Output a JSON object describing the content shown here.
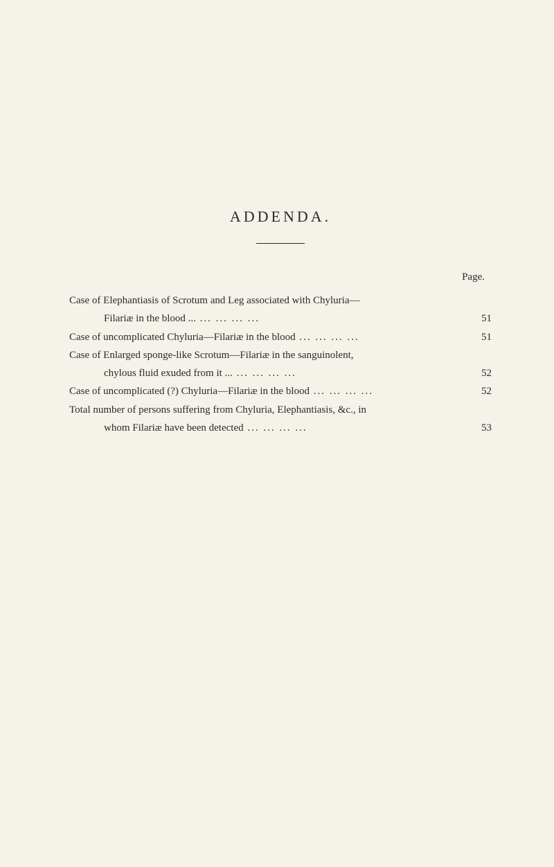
{
  "title": "ADDENDA.",
  "pageLabel": "Page.",
  "entries": [
    {
      "lines": [
        {
          "text": "Case of Elephantiasis of Scrotum and Leg associated with Chyluria—",
          "indent": false,
          "page": ""
        },
        {
          "text": "Filariæ in the blood ...",
          "indent": true,
          "page": "51",
          "dotted": true
        }
      ]
    },
    {
      "lines": [
        {
          "text": "Case of uncomplicated Chyluria—Filariæ in the blood",
          "indent": false,
          "page": "51",
          "dotted": true
        }
      ]
    },
    {
      "lines": [
        {
          "text": "Case of Enlarged sponge-like Scrotum—Filariæ in the sanguinolent,",
          "indent": false,
          "page": ""
        },
        {
          "text": "chylous fluid exuded from it ...",
          "indent": true,
          "page": "52",
          "dotted": true
        }
      ]
    },
    {
      "lines": [
        {
          "text": "Case of uncomplicated (?) Chyluria—Filariæ in the blood",
          "indent": false,
          "page": "52",
          "dotted": true
        }
      ]
    },
    {
      "lines": [
        {
          "text": "Total number of persons suffering from Chyluria, Elephantiasis, &c., in",
          "indent": false,
          "page": ""
        },
        {
          "text": "whom Filariæ have been detected",
          "indent": true,
          "page": "53",
          "dotted": true
        }
      ]
    }
  ]
}
